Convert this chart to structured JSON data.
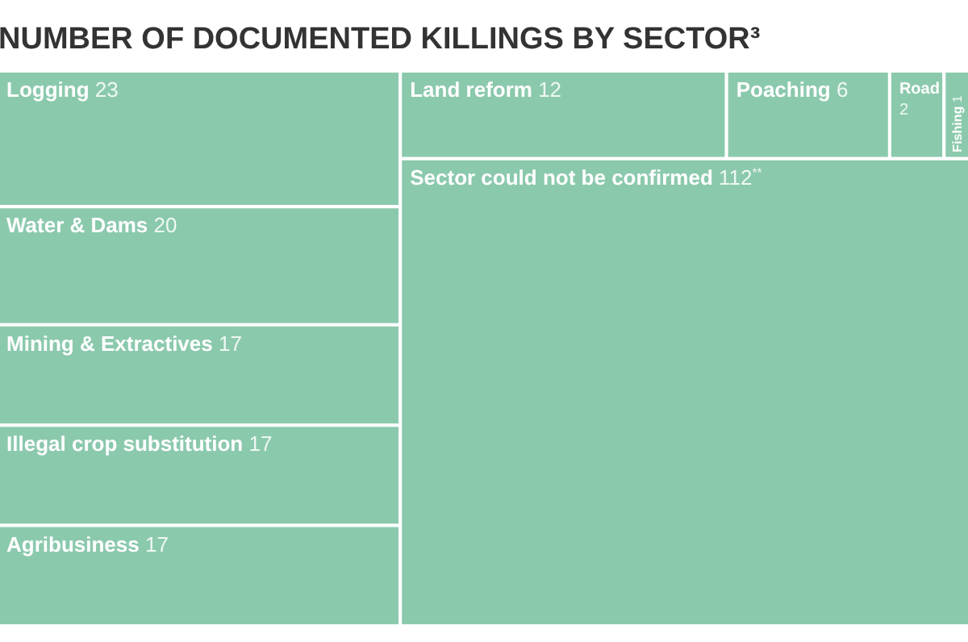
{
  "chart_data": {
    "type": "other",
    "title": "NUMBER OF DOCUMENTED KILLINGS BY SECTOR³",
    "categories": [
      "Logging",
      "Water & Dams",
      "Mining & Extractives",
      "Illegal crop substitution",
      "Agribusiness",
      "Land reform",
      "Poaching",
      "Road",
      "Fishing",
      "Sector could not be confirmed"
    ],
    "values": [
      23,
      20,
      17,
      17,
      17,
      12,
      6,
      2,
      1,
      112
    ],
    "value_labels": [
      "23",
      "20",
      "17",
      "17",
      "17",
      "12",
      "6",
      "2",
      "1",
      "112$^{**}$"
    ],
    "color": "#8bc9ad"
  }
}
